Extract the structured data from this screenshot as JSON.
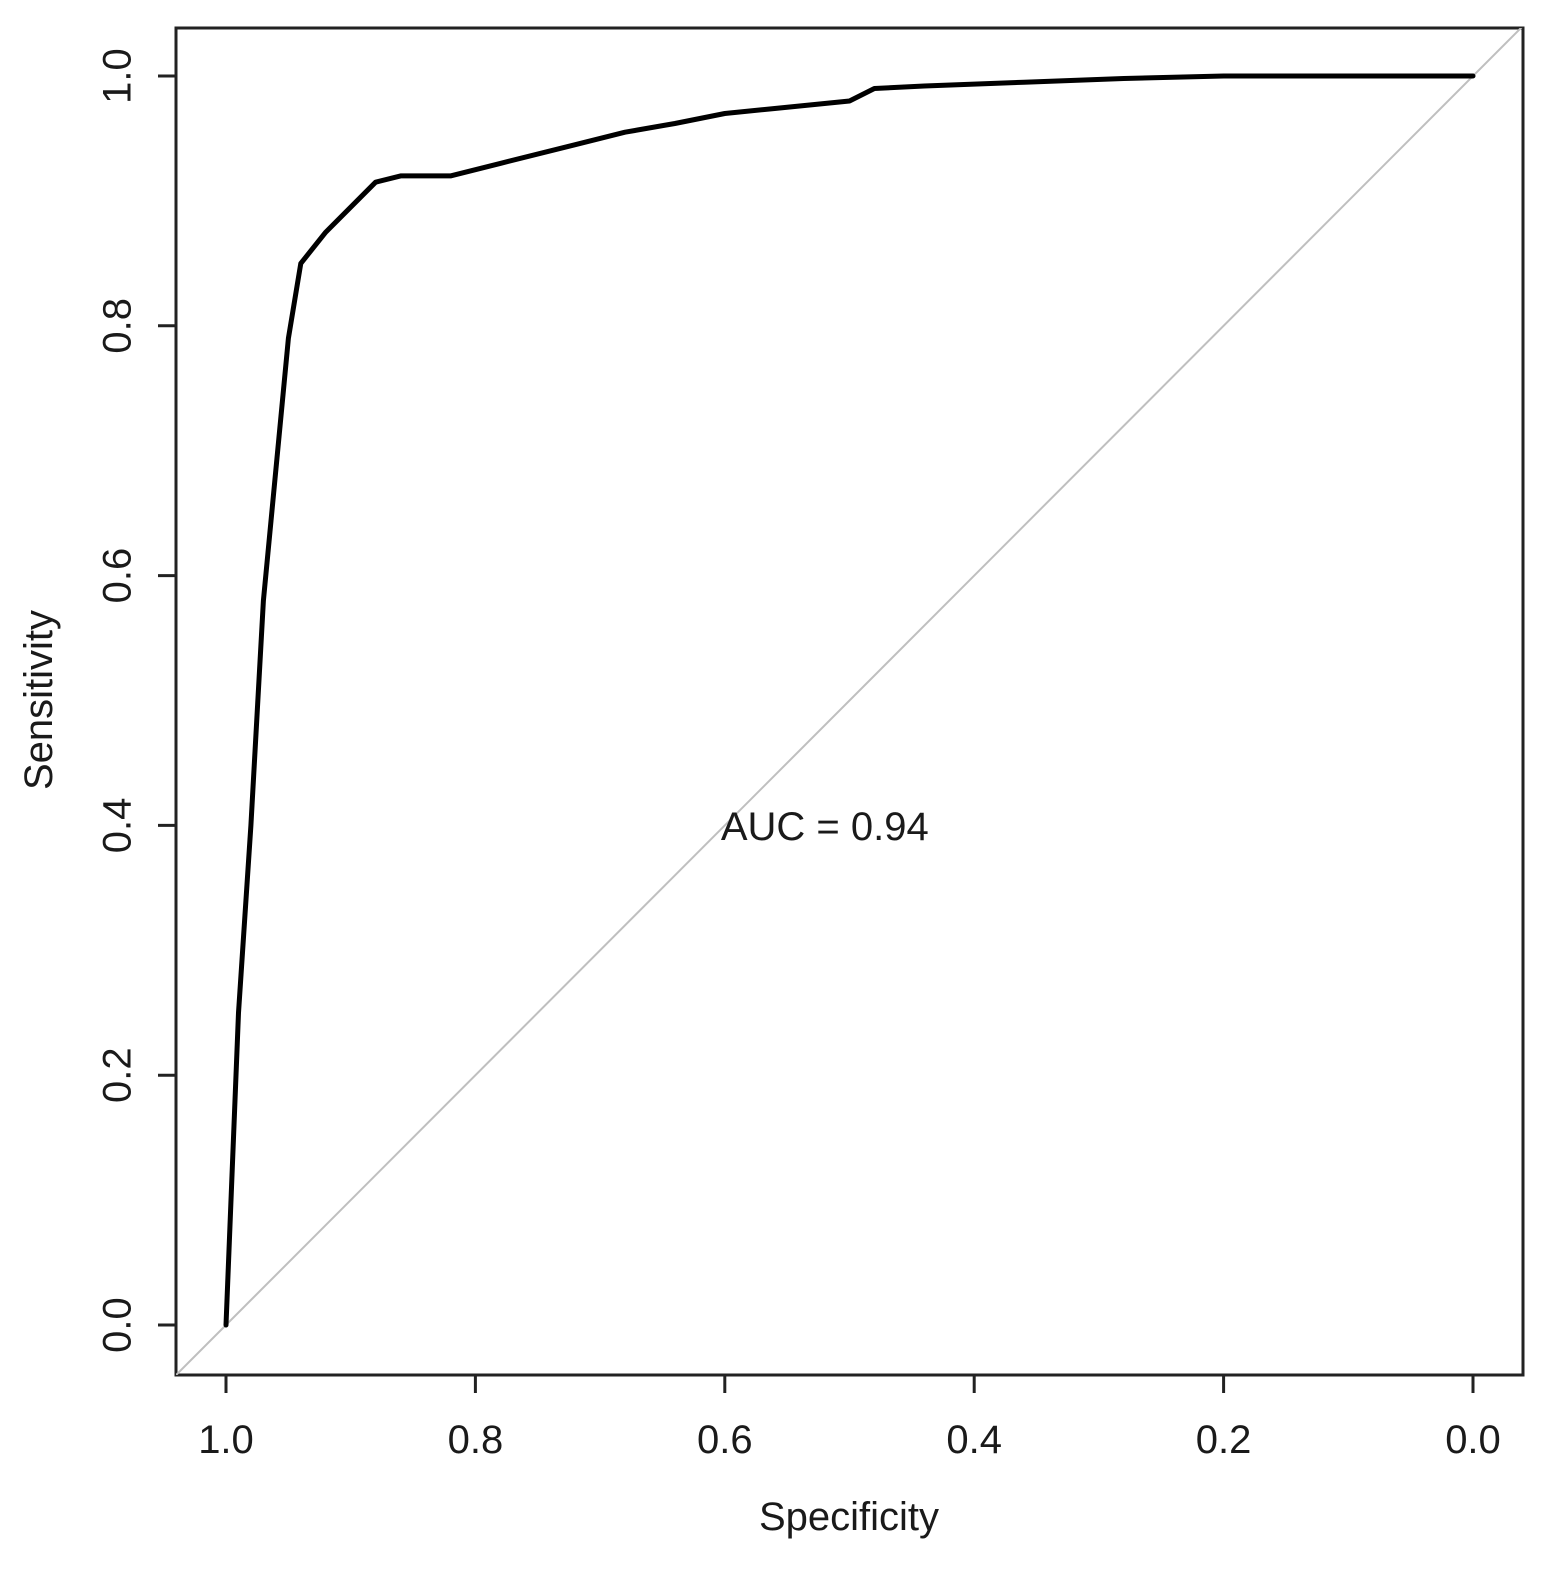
{
  "chart_data": {
    "type": "line",
    "xlabel": "Specificity",
    "ylabel": "Sensitivity",
    "xlim": [
      1.0,
      0.0
    ],
    "ylim": [
      0.0,
      1.0
    ],
    "x_reversed": true,
    "grid": false,
    "legend": "none",
    "x_ticks": [
      "1.0",
      "0.8",
      "0.6",
      "0.4",
      "0.2",
      "0.0"
    ],
    "y_ticks": [
      "0.0",
      "0.2",
      "0.4",
      "0.6",
      "0.8",
      "1.0"
    ],
    "reference_line": {
      "from": [
        1.0,
        0.0
      ],
      "to": [
        0.0,
        1.0
      ],
      "color": "#bfbfbf"
    },
    "annotation": {
      "text": "AUC = 0.94",
      "x": 0.6,
      "y": 0.4
    },
    "series": [
      {
        "color": "#000000",
        "x": [
          1.0,
          0.99,
          0.98,
          0.97,
          0.95,
          0.94,
          0.92,
          0.88,
          0.86,
          0.82,
          0.78,
          0.72,
          0.68,
          0.64,
          0.6,
          0.56,
          0.5,
          0.48,
          0.44,
          0.36,
          0.28,
          0.2,
          0.18,
          0.1,
          0.0
        ],
        "y": [
          0.0,
          0.25,
          0.4,
          0.58,
          0.79,
          0.85,
          0.875,
          0.915,
          0.92,
          0.92,
          0.93,
          0.945,
          0.955,
          0.962,
          0.97,
          0.974,
          0.98,
          0.99,
          0.992,
          0.995,
          0.998,
          1.0,
          1.0,
          1.0,
          1.0
        ]
      }
    ]
  }
}
